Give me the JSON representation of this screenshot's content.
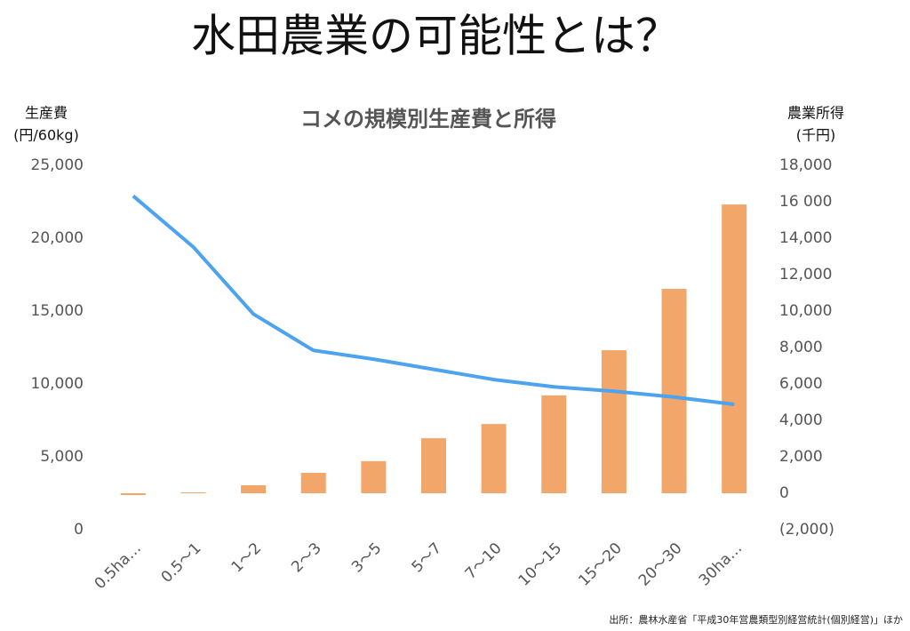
{
  "page_title": "水田農業の可能性とは？",
  "source": "出所：農林水産省「平成30年営農類型別経営統計(個別経営)」ほか",
  "chart_data": {
    "type": "bar-line",
    "title": "コメの規模別生産費と所得",
    "y_label": [
      "生産費",
      "(円/60kg)"
    ],
    "y2_label": [
      "農業所得",
      "(千円)"
    ],
    "categories": [
      "0.5ha…",
      "0.5〜1",
      "1〜2",
      "2〜3",
      "3〜5",
      "5〜7",
      "7〜10",
      "10〜15",
      "15〜20",
      "20〜30",
      "30ha…"
    ],
    "series": [
      {
        "kind": "bar",
        "axis": "y2",
        "color": "#f2a66a",
        "values": [
          -100,
          50,
          440,
          1120,
          1760,
          3020,
          3800,
          5370,
          7850,
          11220,
          15850
        ]
      },
      {
        "kind": "line",
        "axis": "y",
        "color": "#4da3ef",
        "values": [
          22900,
          19400,
          14800,
          12300,
          11700,
          11000,
          10300,
          9800,
          9500,
          9100,
          8600
        ]
      }
    ],
    "ylim": [
      0,
      25000
    ],
    "yticks": [
      0,
      {
        "value": 5000,
        "label": "5,000"
      },
      {
        "value": 10000,
        "label": "10,000"
      },
      {
        "value": 15000,
        "label": "15,000"
      },
      {
        "value": 20000,
        "label": "20,000"
      },
      {
        "value": 25000,
        "label": "25,000"
      }
    ],
    "y2lim": [
      -2000,
      18000
    ],
    "y2ticks": [
      {
        "value": -2000,
        "label": "(2,000)"
      },
      0,
      {
        "value": 2000,
        "label": "2,000"
      },
      {
        "value": 4000,
        "label": "4,000"
      },
      {
        "value": 6000,
        "label": "6,000"
      },
      {
        "value": 8000,
        "label": "8,000"
      },
      {
        "value": 10000,
        "label": "10,000"
      },
      {
        "value": 12000,
        "label": "12,000"
      },
      {
        "value": 14000,
        "label": "14,000"
      },
      {
        "value": 16000,
        "label": "16 000"
      },
      {
        "value": 18000,
        "label": "18,000"
      }
    ],
    "negative_tick_color": "#e00000",
    "grid": false
  }
}
